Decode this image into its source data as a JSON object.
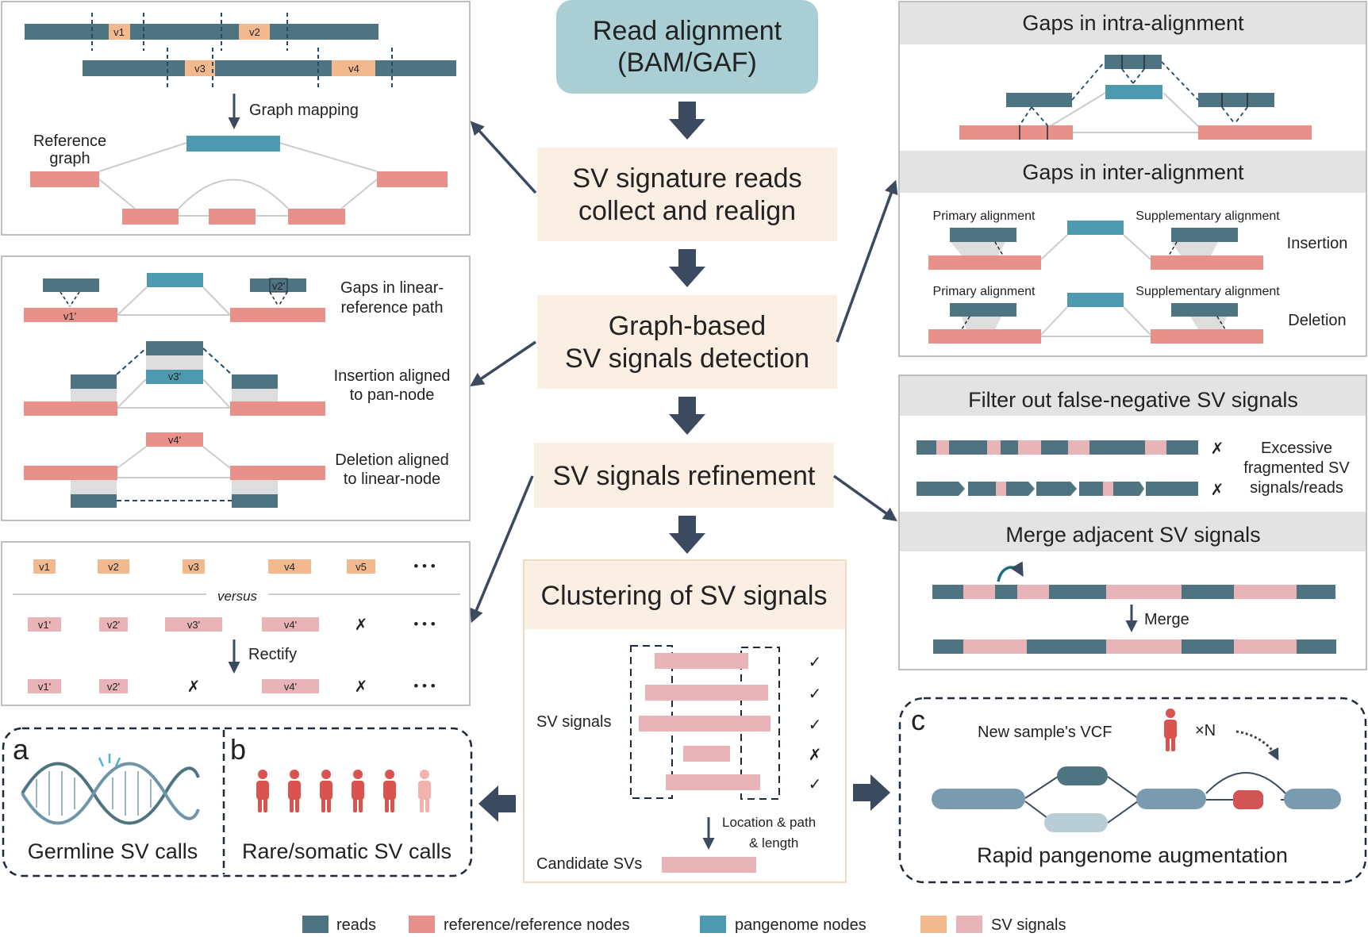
{
  "colors": {
    "reads": "#4e7381",
    "reference": "#e8908a",
    "pangenome": "#4d9ab0",
    "sv_orange": "#f2b98e",
    "sv_pink": "#e8b4b8",
    "flow_box": "#fbeee3",
    "start_box": "#a9cfd4",
    "arrow": "#3c4a5f",
    "header_bg": "#e3e3e3"
  },
  "flow": {
    "start": [
      "Read alignment",
      "(BAM/GAF)"
    ],
    "step1": [
      "SV signature reads",
      "collect and realign"
    ],
    "step2": [
      "Graph-based",
      "SV signals detection"
    ],
    "step3": "SV signals refinement",
    "step4": "Clustering of SV signals"
  },
  "panel_top_left": {
    "v_labels": [
      "v1",
      "v2",
      "v3",
      "v4"
    ],
    "graph_mapping": "Graph mapping",
    "reference_graph": [
      "Reference",
      "graph"
    ]
  },
  "panel_mid_left": {
    "node_labels": [
      "v1'",
      "v2'",
      "v3'",
      "v4'"
    ],
    "captions": [
      [
        "Gaps in linear-",
        "reference path"
      ],
      [
        "Insertion aligned",
        "to pan-node"
      ],
      [
        "Deletion aligned",
        "to linear-node"
      ]
    ]
  },
  "panel_bottom_left": {
    "row1": [
      "v1",
      "v2",
      "v3",
      "v4",
      "v5"
    ],
    "versus": "versus",
    "row2": [
      "v1'",
      "v2'",
      "v3'",
      "v4'"
    ],
    "rectify": "Rectify",
    "row3": [
      "v1'",
      "v2'",
      "v4'"
    ],
    "cross": "✗",
    "ellipsis": "• • •"
  },
  "panel_top_right": {
    "intra_title": "Gaps in intra-alignment",
    "inter_title": "Gaps in inter-alignment",
    "primary": "Primary alignment",
    "supplementary": "Supplementary alignment",
    "insertion": "Insertion",
    "deletion": "Deletion"
  },
  "panel_mid_right": {
    "filter_title": "Filter out false-negative SV signals",
    "excessive": [
      "Excessive",
      "fragmented SV",
      "signals/reads"
    ],
    "merge_title": "Merge adjacent SV signals",
    "merge_label": "Merge",
    "cross": "✗"
  },
  "panel_cluster": {
    "sv_signals": "SV signals",
    "marks": [
      "✓",
      "✓",
      "✓",
      "✗",
      "✓"
    ],
    "location_label": [
      "Location & path",
      "& length"
    ],
    "candidate": "Candidate SVs"
  },
  "bottom_ab": {
    "a": "a",
    "b": "b",
    "germline": "Germline SV calls",
    "rare": "Rare/somatic SV calls"
  },
  "bottom_c": {
    "c": "c",
    "new_sample": "New sample's VCF",
    "times_n": "×N",
    "rapid": "Rapid pangenome augmentation"
  },
  "legend": {
    "reads": "reads",
    "reference": "reference/reference nodes",
    "pangenome": "pangenome nodes",
    "sv_signals": "SV signals"
  }
}
